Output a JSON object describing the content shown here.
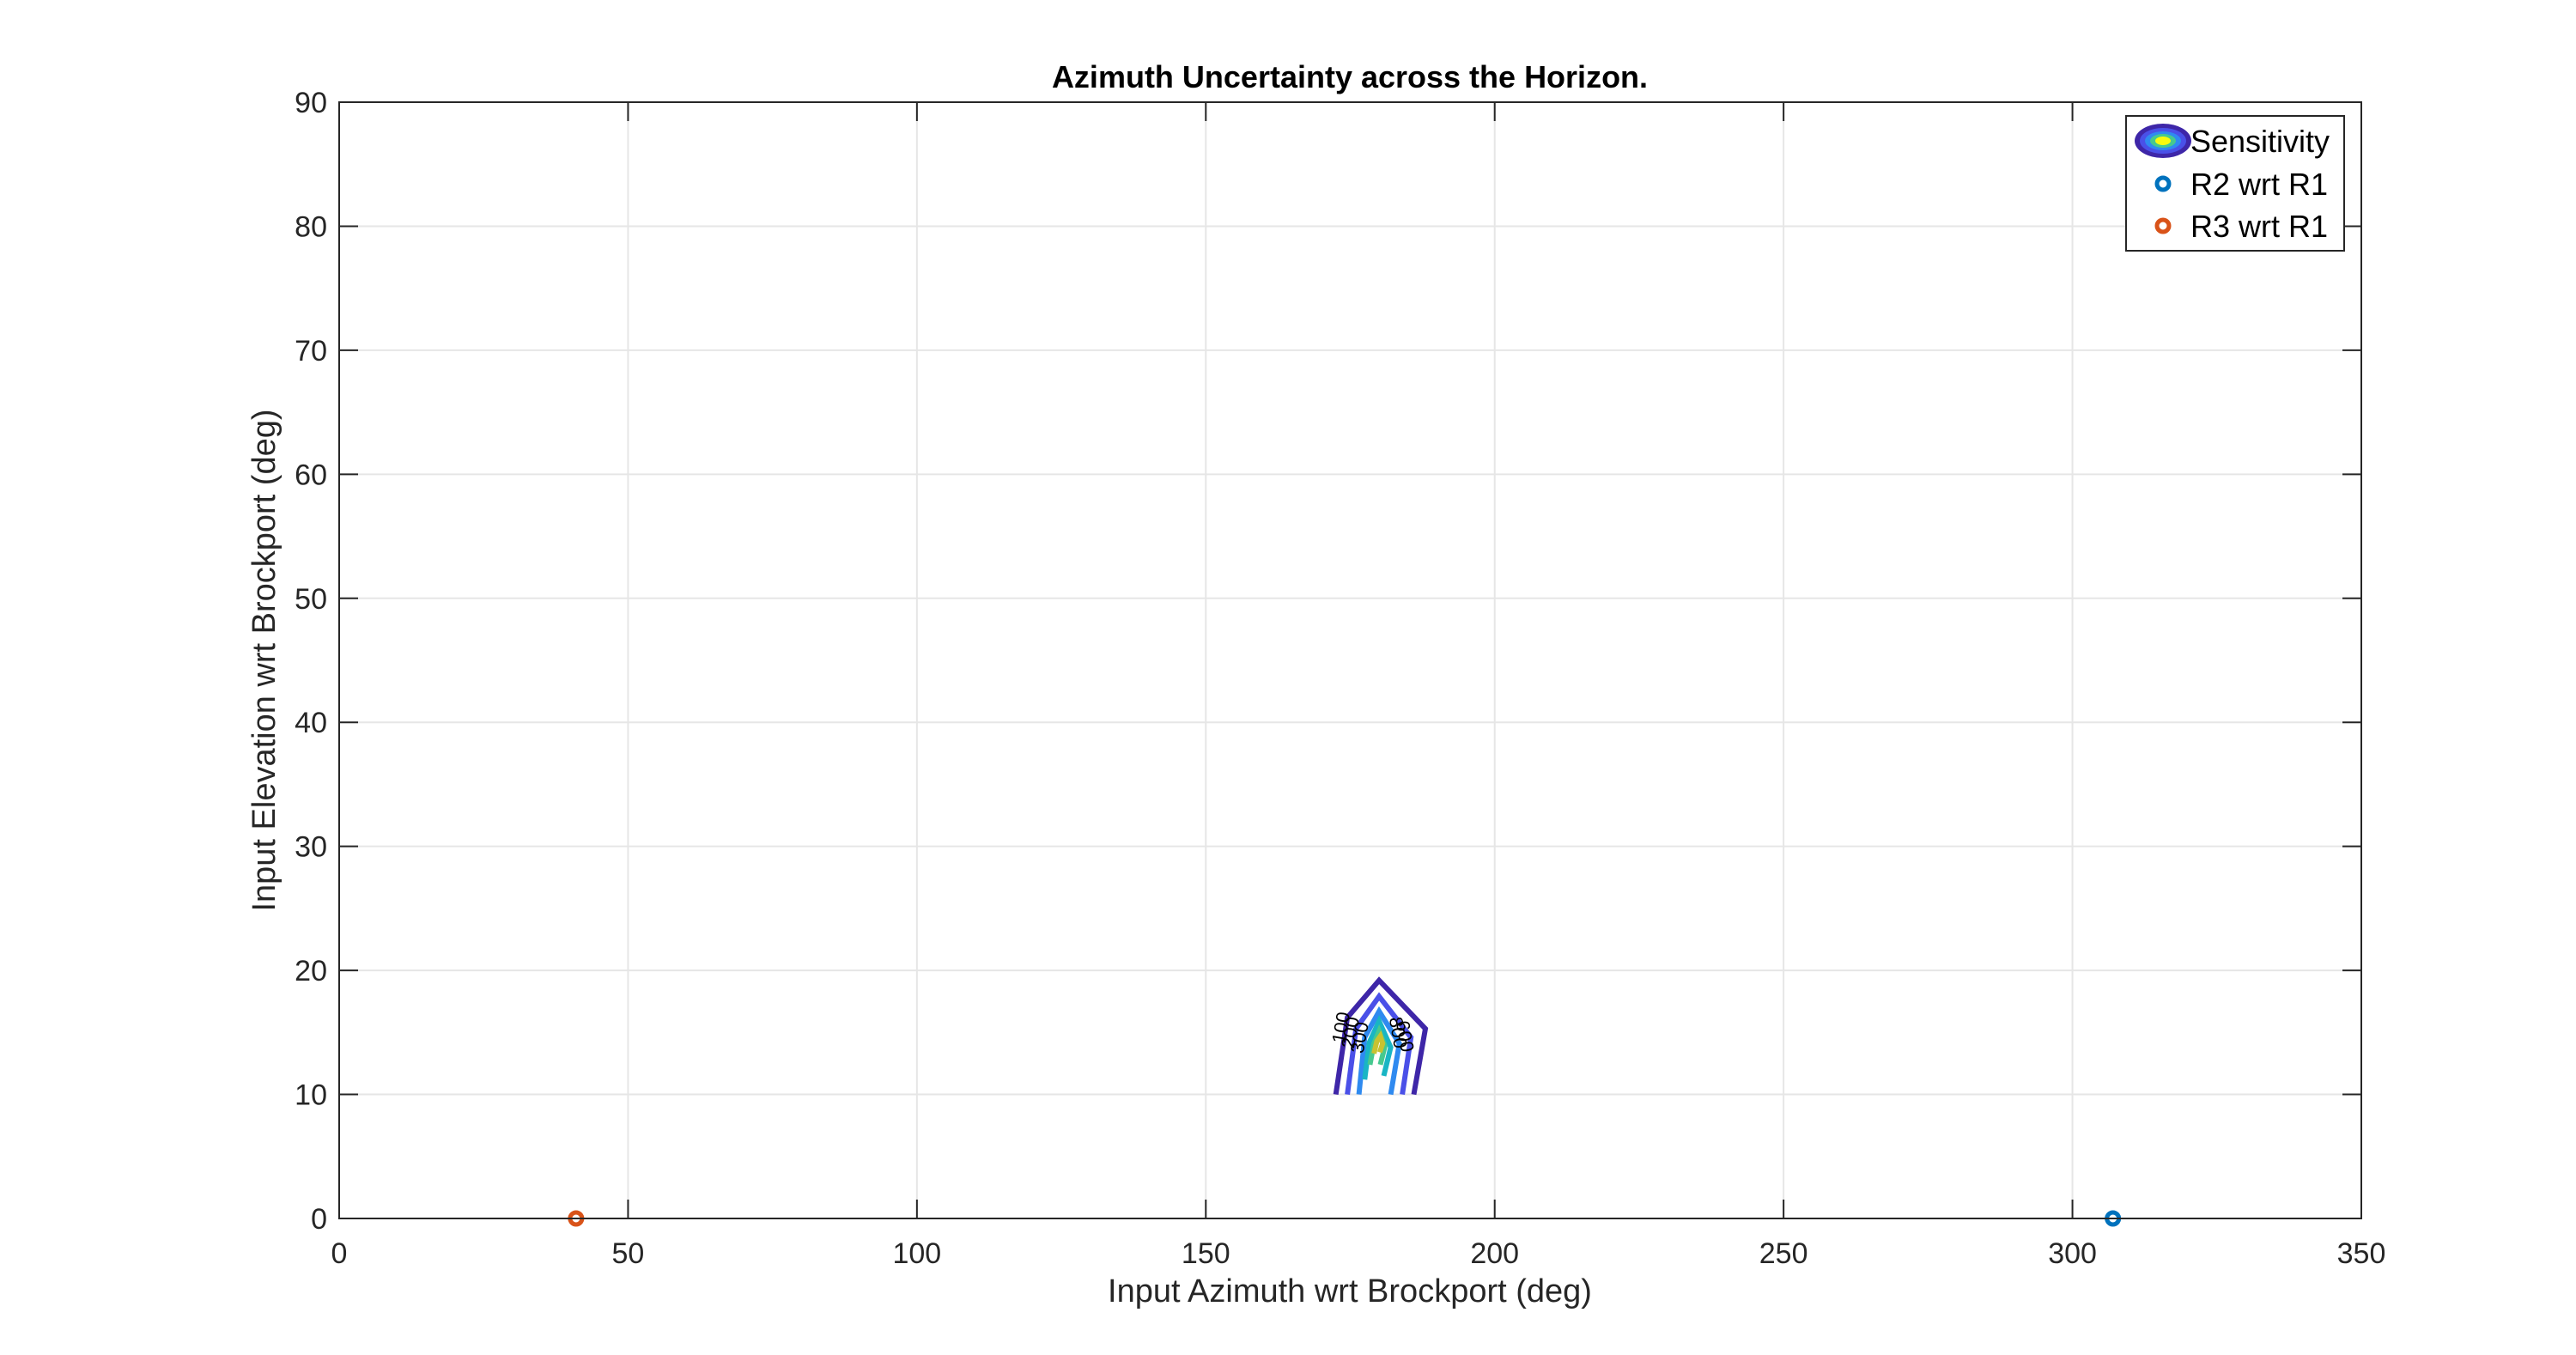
{
  "chart_data": {
    "type": "contour",
    "title": "Azimuth Uncertainty across the Horizon.",
    "xlabel": "Input Azimuth wrt Brockport (deg)",
    "ylabel": "Input Elevation wrt Brockport (deg)",
    "xlim": [
      0,
      350
    ],
    "ylim": [
      0,
      90
    ],
    "xticks": [
      0,
      50,
      100,
      150,
      200,
      250,
      300,
      350
    ],
    "yticks": [
      0,
      10,
      20,
      30,
      40,
      50,
      60,
      70,
      80,
      90
    ],
    "grid": true,
    "legend_position": "top-right",
    "legend": [
      {
        "label": "Sensitivity",
        "marker": "contour-icon"
      },
      {
        "label": "R2 wrt R1",
        "marker": "circle",
        "color": "#0072BD"
      },
      {
        "label": "R3 wrt R1",
        "marker": "circle",
        "color": "#D95319"
      }
    ],
    "contours": [
      {
        "color": "#3E26A8",
        "points": [
          [
            172.5,
            10
          ],
          [
            174.5,
            16.2
          ],
          [
            180,
            19.2
          ],
          [
            188,
            15.3
          ],
          [
            186,
            10
          ]
        ]
      },
      {
        "color": "#4A50E8",
        "points": [
          [
            174.5,
            10
          ],
          [
            176,
            15.3
          ],
          [
            180,
            17.9
          ],
          [
            185.5,
            14.6
          ],
          [
            184,
            10
          ]
        ]
      },
      {
        "color": "#2F8AF0",
        "points": [
          [
            176.5,
            10
          ],
          [
            177.5,
            14.6
          ],
          [
            180,
            16.7
          ],
          [
            183.5,
            14.1
          ],
          [
            182,
            10
          ]
        ]
      },
      {
        "color": "#19B5C4",
        "points": [
          [
            177.5,
            11.2
          ],
          [
            178.3,
            14.2
          ],
          [
            180,
            15.9
          ],
          [
            182,
            13.8
          ],
          [
            180.8,
            11.5
          ]
        ]
      },
      {
        "color": "#46C98F",
        "points": [
          [
            178.4,
            12.4
          ],
          [
            179.1,
            14.1
          ],
          [
            180,
            15.1
          ],
          [
            181,
            13.9
          ],
          [
            180.2,
            12.4
          ]
        ]
      },
      {
        "color": "#C8C231",
        "points": [
          [
            179.1,
            13.3
          ],
          [
            179.6,
            14.3
          ],
          [
            180.2,
            14.7
          ],
          [
            180.6,
            14.1
          ],
          [
            180.1,
            13.4
          ]
        ]
      }
    ],
    "contour_labels": [
      {
        "text": "100",
        "x": 174.5,
        "y": 15.3,
        "angle": -80
      },
      {
        "text": "200",
        "x": 176.1,
        "y": 14.9,
        "angle": -80
      },
      {
        "text": "300",
        "x": 177.7,
        "y": 14.5,
        "angle": -80
      },
      {
        "text": "800",
        "x": 182.2,
        "y": 14.9,
        "angle": 80
      },
      {
        "text": "600",
        "x": 183.4,
        "y": 14.6,
        "angle": 80
      }
    ],
    "series": [
      {
        "name": "R2 wrt R1",
        "color": "#0072BD",
        "points": [
          [
            307,
            0
          ]
        ]
      },
      {
        "name": "R3 wrt R1",
        "color": "#D95319",
        "points": [
          [
            41,
            0
          ]
        ]
      }
    ]
  }
}
